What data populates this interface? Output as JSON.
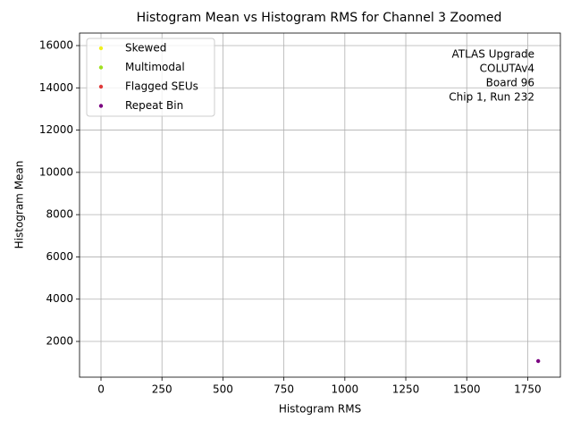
{
  "chart_data": {
    "type": "scatter",
    "title": "Histogram Mean vs Histogram RMS for Channel 3 Zoomed",
    "x_label": "Histogram RMS",
    "y_label": "Histogram Mean",
    "annotation": [
      "ATLAS Upgrade",
      "COLUTAv4",
      "Board 96",
      "Chip 1, Run 232"
    ],
    "series": [
      {
        "name": "Skewed",
        "color": "#f0f020",
        "x": [],
        "values": []
      },
      {
        "name": "Multimodal",
        "color": "#a0e020",
        "x": [],
        "values": []
      },
      {
        "name": "Flagged SEUs",
        "color": "#e03a3a",
        "x": [],
        "values": []
      },
      {
        "name": "Repeat Bin",
        "color": "#7a0080",
        "x": [
          1793
        ],
        "values": [
          1070
        ]
      }
    ],
    "xlim": [
      -88,
      1884
    ],
    "ylim": [
      309,
      16592
    ],
    "xticks": [
      0,
      250,
      500,
      750,
      1000,
      1250,
      1500,
      1750
    ],
    "yticks": [
      2000,
      4000,
      6000,
      8000,
      10000,
      12000,
      14000,
      16000
    ],
    "grid": true,
    "legend": "upper-left"
  }
}
